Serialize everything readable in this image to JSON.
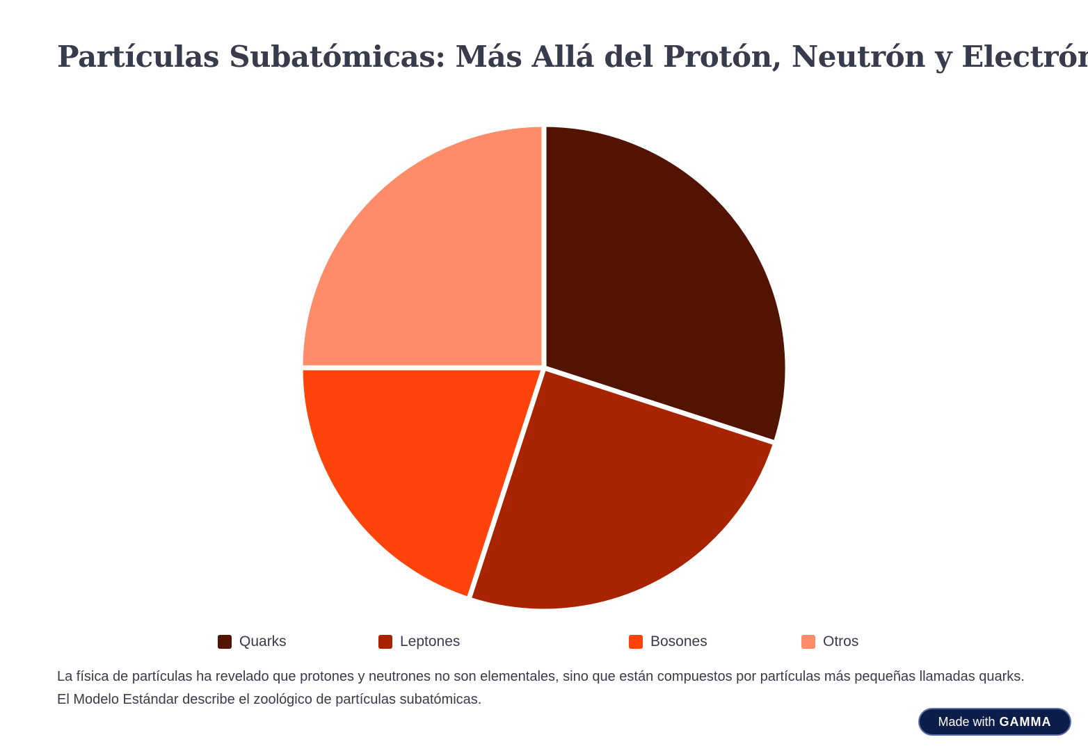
{
  "title": "Partículas Subatómicas: Más Allá del Protón, Neutrón y Electrón",
  "chart_data": {
    "type": "pie",
    "start_angle": "12 o'clock",
    "direction": "clockwise",
    "legend_position": "bottom",
    "categories": [
      "Quarks",
      "Leptones",
      "Bosones",
      "Otros"
    ],
    "values": [
      30,
      25,
      20,
      25
    ],
    "colors": [
      "#521300",
      "#a82400",
      "#ff430a",
      "#ff8c69"
    ]
  },
  "description": "La física de partículas ha revelado que protones y neutrones no son elementales, sino que están compuestos por partículas más pequeñas llamadas quarks. El Modelo Estándar describe el zoológico de partículas subatómicas.",
  "badge": {
    "prefix": "Made with",
    "brand": "GAMMA"
  }
}
